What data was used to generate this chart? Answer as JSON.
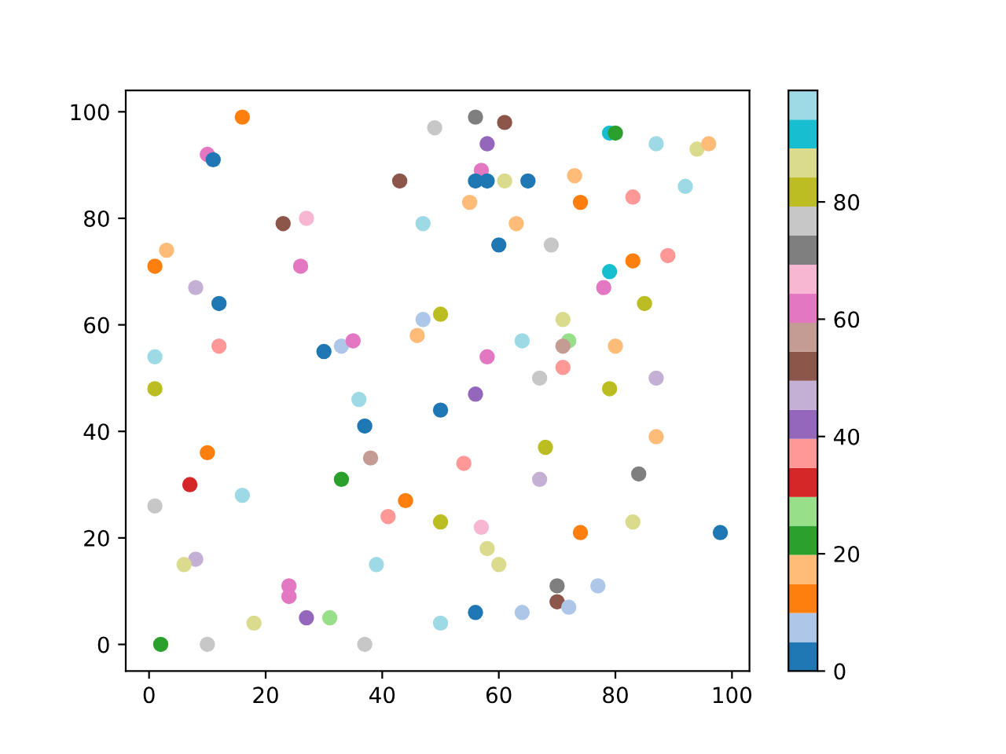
{
  "chart_data": {
    "type": "scatter",
    "x": [
      16,
      10,
      11,
      3,
      1,
      8,
      12,
      1,
      12,
      23,
      27,
      26,
      30,
      33,
      35,
      43,
      47,
      49,
      46,
      47,
      50,
      1,
      56,
      61,
      58,
      57,
      56,
      58,
      61,
      65,
      55,
      63,
      60,
      69,
      79,
      80,
      73,
      74,
      83,
      87,
      94,
      96,
      92,
      83,
      89,
      79,
      78,
      85,
      71,
      72,
      71,
      64,
      58,
      80,
      71,
      67,
      87,
      79,
      56,
      50,
      87,
      68,
      54,
      67,
      84,
      50,
      57,
      74,
      83,
      98,
      58,
      60,
      70,
      70,
      72,
      77,
      56,
      64,
      50,
      36,
      37,
      10,
      38,
      7,
      33,
      16,
      1,
      44,
      41,
      8,
      6,
      39,
      24,
      24,
      27,
      31,
      18,
      2,
      10,
      37
    ],
    "values": [
      99,
      92,
      91,
      74,
      71,
      67,
      64,
      54,
      56,
      79,
      80,
      71,
      55,
      56,
      57,
      87,
      79,
      97,
      58,
      61,
      62,
      48,
      99,
      98,
      94,
      89,
      87,
      87,
      87,
      87,
      83,
      79,
      75,
      75,
      96,
      96,
      88,
      83,
      84,
      94,
      93,
      94,
      86,
      72,
      73,
      70,
      67,
      64,
      61,
      57,
      56,
      57,
      54,
      56,
      52,
      50,
      50,
      48,
      47,
      44,
      39,
      37,
      34,
      31,
      32,
      23,
      22,
      21,
      23,
      21,
      18,
      15,
      11,
      8,
      7,
      11,
      6,
      6,
      4,
      46,
      41,
      36,
      35,
      30,
      31,
      28,
      26,
      27,
      24,
      16,
      15,
      15,
      11,
      9,
      5,
      5,
      4,
      0,
      0,
      0
    ],
    "cvalues": [
      12,
      62,
      2,
      17,
      12,
      47,
      2,
      96,
      37,
      52,
      67,
      62,
      2,
      7,
      62,
      52,
      96,
      77,
      17,
      7,
      82,
      82,
      72,
      52,
      42,
      62,
      2,
      2,
      87,
      2,
      17,
      17,
      2,
      77,
      92,
      22,
      17,
      12,
      37,
      96,
      87,
      17,
      96,
      12,
      37,
      92,
      62,
      82,
      87,
      27,
      57,
      96,
      62,
      17,
      37,
      77,
      47,
      82,
      42,
      2,
      17,
      82,
      37,
      47,
      72,
      82,
      67,
      12,
      87,
      2,
      87,
      87,
      72,
      52,
      7,
      7,
      2,
      7,
      96,
      96,
      2,
      12,
      57,
      32,
      22,
      96,
      77,
      12,
      37,
      47,
      87,
      96,
      62,
      62,
      42,
      27,
      87,
      22,
      77,
      77
    ],
    "xlim": [
      -4,
      103
    ],
    "ylim": [
      -5,
      104
    ],
    "xticks": [
      0,
      20,
      40,
      60,
      80,
      100
    ],
    "yticks": [
      0,
      20,
      40,
      60,
      80,
      100
    ],
    "clim": [
      0,
      99
    ],
    "cticks": [
      0,
      20,
      40,
      60,
      80
    ],
    "marker": "circle",
    "grid": false
  }
}
